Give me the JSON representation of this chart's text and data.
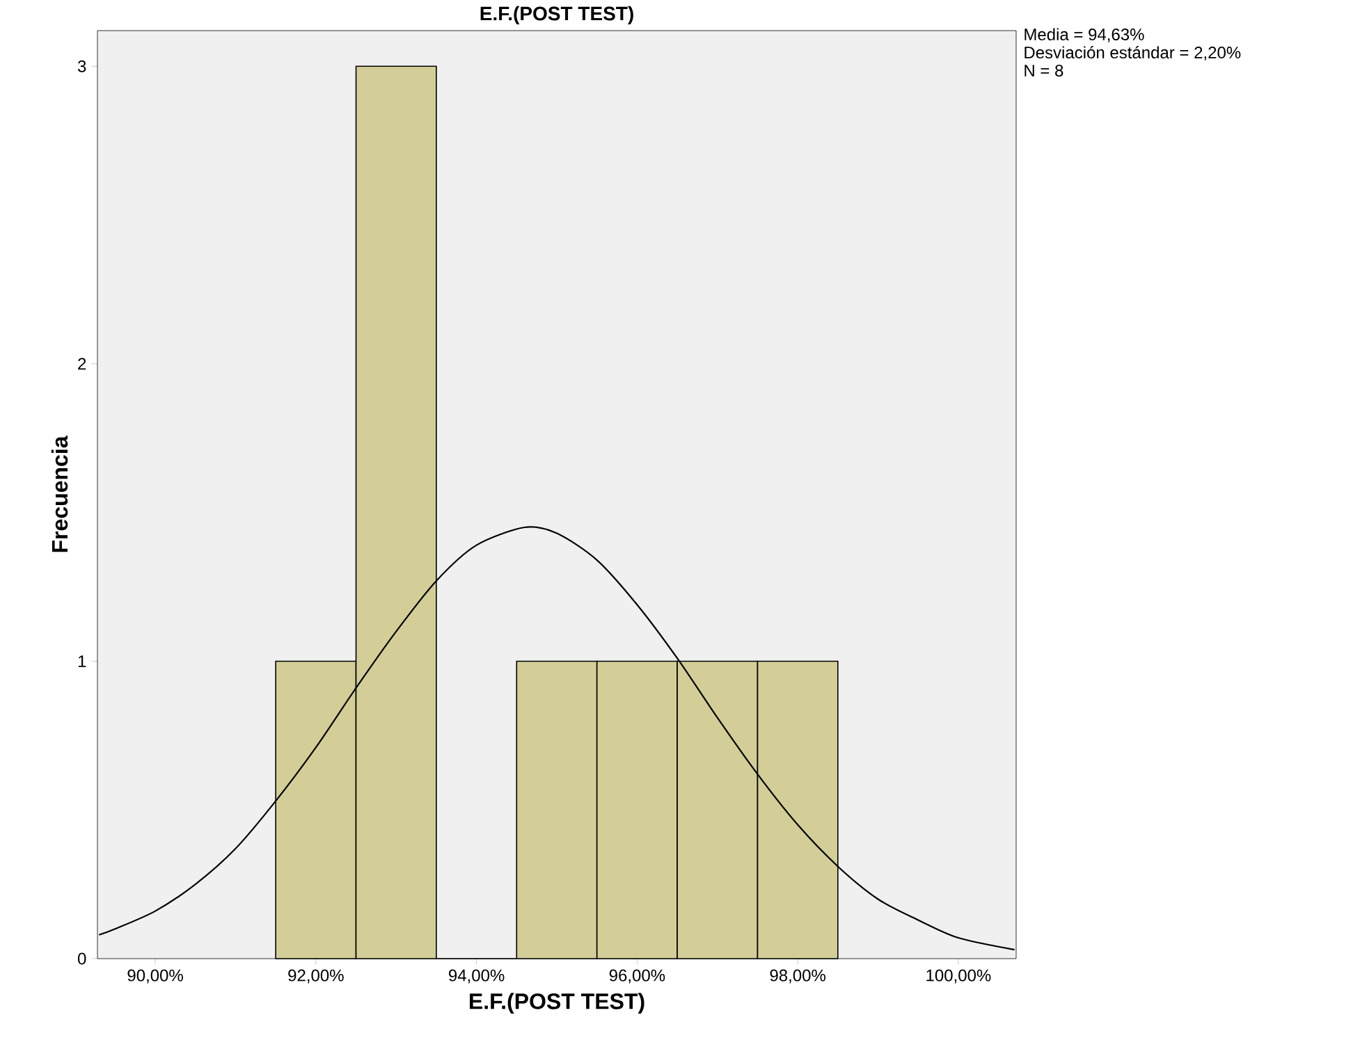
{
  "chart_data": {
    "type": "histogram",
    "title": "E.F.(POST TEST)",
    "xlabel": "E.F.(POST TEST)",
    "ylabel": "Frecuencia",
    "annotations": [
      "Media = 94,63%",
      "Desviación estándar = 2,20%",
      "N = 8"
    ],
    "series": [
      {
        "bins": [
          91.5,
          92.5,
          93.5,
          94.5,
          95.5,
          96.5,
          97.5,
          98.5
        ],
        "values": [
          1,
          3,
          0,
          1,
          1,
          1,
          1
        ],
        "color": "#d3ce97"
      },
      {
        "type": "line",
        "color": "#000000",
        "x": [
          89.3,
          89.5,
          90,
          90.5,
          91,
          91.5,
          92,
          92.5,
          93,
          93.5,
          94,
          94.6,
          95,
          95.5,
          96,
          96.5,
          97,
          97.5,
          98,
          98.5,
          99,
          99.5,
          100,
          100.7
        ],
        "values": [
          0.08,
          0.1,
          0.16,
          0.25,
          0.37,
          0.53,
          0.71,
          0.91,
          1.1,
          1.27,
          1.39,
          1.45,
          1.43,
          1.34,
          1.19,
          1.01,
          0.81,
          0.62,
          0.45,
          0.31,
          0.2,
          0.13,
          0.07,
          0.03
        ]
      }
    ],
    "xlim": [
      89.28,
      100.72
    ],
    "ylim": [
      0,
      3.12
    ],
    "xticks": [
      {
        "value": 90,
        "label": "90,00%"
      },
      {
        "value": 92,
        "label": "92,00%"
      },
      {
        "value": 94,
        "label": "94,00%"
      },
      {
        "value": 96,
        "label": "96,00%"
      },
      {
        "value": 98,
        "label": "98,00%"
      },
      {
        "value": 100,
        "label": "100,00%"
      }
    ],
    "yticks": [
      0,
      1,
      2,
      3
    ],
    "grid": false,
    "legend": false,
    "marker": "none",
    "line_style": "solid"
  }
}
